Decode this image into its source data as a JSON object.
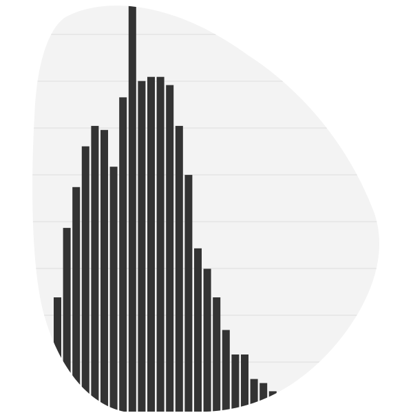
{
  "chart_data": {
    "type": "bar",
    "title": "",
    "xlabel": "",
    "ylabel": "",
    "grid": true,
    "legend": "none",
    "ylim": [
      0,
      100
    ],
    "values": [
      28,
      45,
      55,
      65,
      70,
      69,
      60,
      77,
      100,
      81,
      82,
      82,
      80,
      70,
      58,
      40,
      35,
      28,
      20,
      14,
      14,
      8,
      7,
      5,
      4
    ],
    "colors": {
      "bar": "#333333",
      "grid": "#dcdcdc",
      "plot_bg": "#f3f3f3",
      "page_bg": "#ffffff"
    }
  }
}
